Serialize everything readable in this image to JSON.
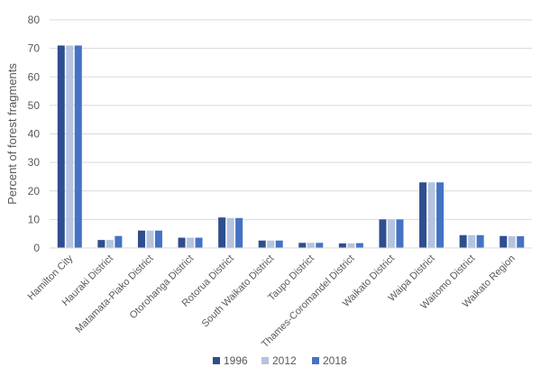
{
  "chart_data": {
    "type": "bar",
    "title": "",
    "xlabel": "",
    "ylabel": "Percent of forest fragments",
    "ylim": [
      0,
      80
    ],
    "yticks": [
      0,
      10,
      20,
      30,
      40,
      50,
      60,
      70,
      80
    ],
    "grid": true,
    "legend_position": "bottom",
    "categories": [
      "Hamilton City",
      "Hauraki District",
      "Matamata-Piako District",
      "Otorohanga District",
      "Rotorua District",
      "South Waikato District",
      "Taupo District",
      "Thames-Coromandel District",
      "Waikato District",
      "Waipa District",
      "Waitomo District",
      "Waikato Region"
    ],
    "series": [
      {
        "name": "1996",
        "color": "#2F4E8F",
        "values": [
          71,
          2.8,
          6.1,
          3.6,
          10.7,
          2.6,
          1.8,
          1.6,
          10.0,
          23.0,
          4.5,
          4.2
        ]
      },
      {
        "name": "2012",
        "color": "#B4C3E0",
        "values": [
          71,
          2.8,
          6.1,
          3.6,
          10.5,
          2.6,
          1.8,
          1.6,
          10.0,
          23.0,
          4.5,
          4.1
        ]
      },
      {
        "name": "2018",
        "color": "#4472C4",
        "values": [
          71,
          4.2,
          6.1,
          3.6,
          10.5,
          2.6,
          1.8,
          1.7,
          10.0,
          23.0,
          4.5,
          4.1
        ]
      }
    ]
  }
}
